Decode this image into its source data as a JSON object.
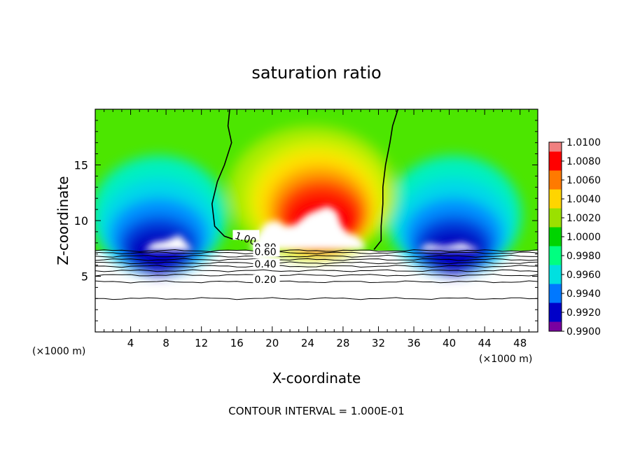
{
  "chart_data": {
    "type": "heatmap",
    "title": "saturation ratio",
    "xlabel": "X-coordinate",
    "ylabel": "Z-coordinate",
    "x_unit_left": "(×1000 m)",
    "x_unit_right": "(×1000 m)",
    "xlim": [
      0,
      50
    ],
    "ylim": [
      0,
      20
    ],
    "x_ticks": [
      4,
      8,
      12,
      16,
      20,
      24,
      28,
      32,
      36,
      40,
      44,
      48
    ],
    "y_ticks": [
      5,
      10,
      15
    ],
    "footer": "CONTOUR INTERVAL = 1.000E-01",
    "colorbar": {
      "labels": [
        "1.0100",
        "1.0080",
        "1.0060",
        "1.0040",
        "1.0020",
        "1.0000",
        "0.9980",
        "0.9960",
        "0.9940",
        "0.9920",
        "0.9900"
      ],
      "colors": [
        "#f08080",
        "#ff0000",
        "#ff7a00",
        "#ffd500",
        "#9be000",
        "#00d400",
        "#00ff80",
        "#00e0e0",
        "#0078ff",
        "#0000c8",
        "#7a00a0"
      ]
    },
    "field_regions": [
      {
        "name": "background",
        "value": 1.0,
        "color": "#4ce600"
      },
      {
        "name": "central-plume-outer",
        "value": 1.002,
        "center": [
          25,
          13.5
        ],
        "color": "#c8f000"
      },
      {
        "name": "central-plume-yellow",
        "value": 1.004,
        "center": [
          25,
          12.5
        ],
        "color": "#ffe600"
      },
      {
        "name": "central-plume-orange",
        "value": 1.006,
        "center": [
          25.5,
          11.5
        ],
        "color": "#ff9a00"
      },
      {
        "name": "central-plume-red",
        "value": 1.008,
        "center": [
          26,
          10.5
        ],
        "color": "#ff1a00"
      },
      {
        "name": "central-plume-core",
        "value": 1.01,
        "center": [
          26,
          9.5
        ],
        "color": "#ffffff"
      },
      {
        "name": "left-dry-zone",
        "value": 0.992,
        "center": [
          7,
          9
        ],
        "color": "#0000d0"
      },
      {
        "name": "right-dry-zone",
        "value": 0.992,
        "center": [
          40,
          9
        ],
        "color": "#0000d0"
      }
    ],
    "contour_labels": [
      {
        "text": "1.00",
        "x": 15.7,
        "y": 8.4
      },
      {
        "text": "0.80",
        "x": 18,
        "y": 7.3
      },
      {
        "text": "0.60",
        "x": 18,
        "y": 6.9
      },
      {
        "text": "0.40",
        "x": 18,
        "y": 5.8
      },
      {
        "text": "0.20",
        "x": 18,
        "y": 4.4
      }
    ],
    "contour_levels_lower": [
      7.3,
      7.1,
      6.8,
      6.5,
      6.2,
      5.9,
      5.5,
      5.1,
      4.5,
      3.0
    ],
    "saturation_contour_left": [
      [
        15.2,
        20
      ],
      [
        15.0,
        18.5
      ],
      [
        15.4,
        17
      ],
      [
        14.6,
        15
      ],
      [
        13.8,
        13.5
      ],
      [
        13.2,
        11.5
      ],
      [
        13.5,
        9.5
      ],
      [
        14.6,
        8.6
      ],
      [
        15.7,
        8.3
      ]
    ],
    "saturation_contour_right": [
      [
        34.2,
        20
      ],
      [
        33.6,
        18.5
      ],
      [
        33.3,
        17
      ],
      [
        32.8,
        15
      ],
      [
        32.5,
        13
      ],
      [
        32.5,
        11.5
      ],
      [
        32.3,
        9.5
      ],
      [
        32.3,
        8.2
      ],
      [
        31.5,
        7.4
      ]
    ]
  }
}
